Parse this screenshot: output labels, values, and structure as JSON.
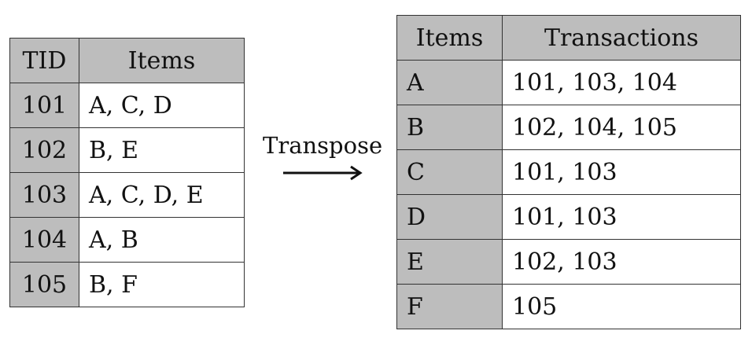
{
  "left_table": {
    "headers": [
      "TID",
      "Items"
    ],
    "rows": [
      {
        "key": "101",
        "value": "A, C, D"
      },
      {
        "key": "102",
        "value": "B, E"
      },
      {
        "key": "103",
        "value": "A, C, D, E"
      },
      {
        "key": "104",
        "value": "A, B"
      },
      {
        "key": "105",
        "value": "B, F"
      }
    ]
  },
  "transform": {
    "label": "Transpose",
    "arrow_icon": "right-arrow-icon"
  },
  "right_table": {
    "headers": [
      "Items",
      "Transactions"
    ],
    "rows": [
      {
        "key": "A",
        "value": "101, 103, 104"
      },
      {
        "key": "B",
        "value": "102, 104, 105"
      },
      {
        "key": "C",
        "value": "101, 103"
      },
      {
        "key": "D",
        "value": "101, 103"
      },
      {
        "key": "E",
        "value": "102, 103"
      },
      {
        "key": "F",
        "value": "105"
      }
    ]
  },
  "colors": {
    "header_fill": "#bdbdbd",
    "cell_fill": "#ffffff",
    "border": "#333333"
  }
}
